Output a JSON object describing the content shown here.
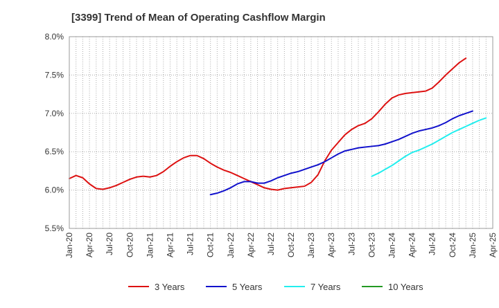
{
  "chart_data": {
    "type": "line",
    "title": "[3399]  Trend of Mean of Operating Cashflow Margin",
    "xlabel": "",
    "ylabel": "",
    "ylim": [
      5.5,
      8.0
    ],
    "yticks": [
      "5.5%",
      "6.0%",
      "6.5%",
      "7.0%",
      "7.5%",
      "8.0%"
    ],
    "ytick_values": [
      5.5,
      6.0,
      6.5,
      7.0,
      7.5,
      8.0
    ],
    "x_start": "Jan-20",
    "xticks": [
      "Jan-20",
      "Apr-20",
      "Jul-20",
      "Oct-20",
      "Jan-21",
      "Apr-21",
      "Jul-21",
      "Oct-21",
      "Jan-22",
      "Apr-22",
      "Jul-22",
      "Oct-22",
      "Jan-23",
      "Apr-23",
      "Jul-23",
      "Oct-23",
      "Jan-24",
      "Apr-24",
      "Jul-24",
      "Oct-24",
      "Jan-25",
      "Apr-25"
    ],
    "grid": true,
    "legend_position": "bottom",
    "series": [
      {
        "name": "3 Years",
        "color": "#dd1111",
        "start_index": 0,
        "values": [
          6.15,
          6.19,
          6.16,
          6.08,
          6.02,
          6.01,
          6.03,
          6.06,
          6.1,
          6.14,
          6.17,
          6.18,
          6.17,
          6.19,
          6.24,
          6.31,
          6.37,
          6.42,
          6.45,
          6.45,
          6.41,
          6.35,
          6.3,
          6.26,
          6.23,
          6.19,
          6.15,
          6.11,
          6.07,
          6.03,
          6.01,
          6.0,
          6.02,
          6.03,
          6.04,
          6.05,
          6.1,
          6.2,
          6.38,
          6.52,
          6.62,
          6.72,
          6.79,
          6.84,
          6.87,
          6.93,
          7.02,
          7.12,
          7.2,
          7.24,
          7.26,
          7.27,
          7.28,
          7.29,
          7.33,
          7.41,
          7.5,
          7.58,
          7.66,
          7.72
        ]
      },
      {
        "name": "5 Years",
        "color": "#1111cc",
        "start_index": 21,
        "values": [
          5.94,
          5.96,
          5.99,
          6.03,
          6.08,
          6.11,
          6.11,
          6.09,
          6.09,
          6.12,
          6.16,
          6.19,
          6.22,
          6.24,
          6.27,
          6.3,
          6.33,
          6.37,
          6.42,
          6.47,
          6.51,
          6.53,
          6.55,
          6.56,
          6.57,
          6.58,
          6.6,
          6.63,
          6.66,
          6.7,
          6.74,
          6.77,
          6.79,
          6.81,
          6.84,
          6.88,
          6.93,
          6.97,
          7.0,
          7.03
        ]
      },
      {
        "name": "7 Years",
        "color": "#22eeee",
        "start_index": 45,
        "values": [
          6.18,
          6.22,
          6.27,
          6.32,
          6.38,
          6.44,
          6.49,
          6.52,
          6.56,
          6.6,
          6.65,
          6.7,
          6.75,
          6.79,
          6.83,
          6.87,
          6.91,
          6.94
        ]
      },
      {
        "name": "10 Years",
        "color": "#229922",
        "start_index": 0,
        "values": []
      }
    ]
  }
}
